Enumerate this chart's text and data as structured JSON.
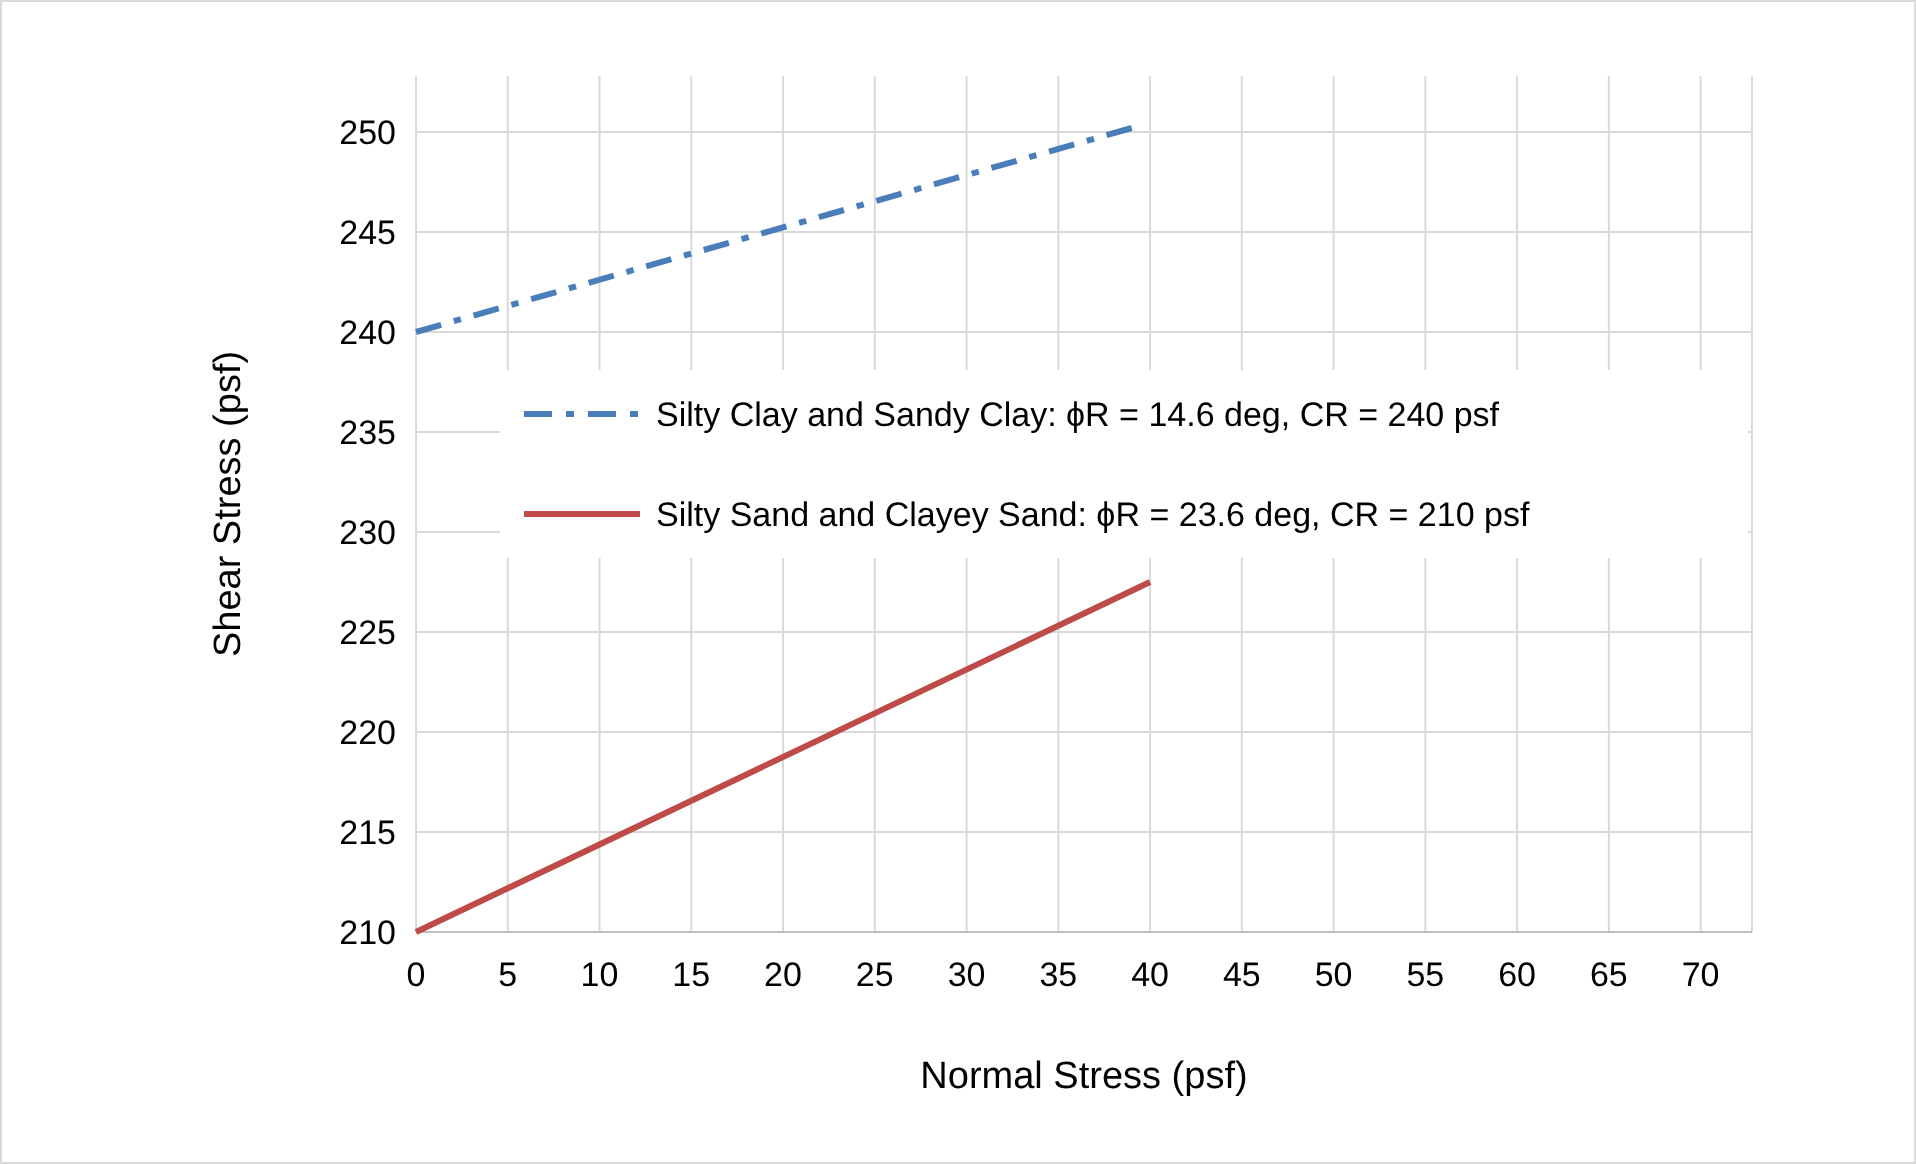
{
  "chart_data": {
    "type": "line",
    "xlabel": "Normal Stress (psf)",
    "ylabel": "Shear Stress (psf)",
    "xlim": [
      0,
      72.8
    ],
    "xticks": [
      0,
      5,
      10,
      15,
      20,
      25,
      30,
      35,
      40,
      45,
      50,
      55,
      60,
      65,
      70
    ],
    "ylim": [
      210,
      252.8
    ],
    "yticks": [
      210,
      215,
      220,
      225,
      230,
      235,
      240,
      245,
      250
    ],
    "grid": true,
    "legend": "right",
    "marker": "none",
    "series": [
      {
        "name": "Silty Clay and Sandy Clay: ϕR = 14.6 deg, CR = 240 psf",
        "color": "#4a7ebb",
        "line_style": "dashed",
        "x": [
          0,
          39
        ],
        "values": [
          240,
          250.2
        ]
      },
      {
        "name": "Silty Sand and Clayey Sand: ϕR = 23.6 deg, CR = 210 psf",
        "color": "#be4b48",
        "line_style": "solid",
        "x": [
          0,
          40
        ],
        "values": [
          210,
          227.5
        ]
      }
    ]
  }
}
